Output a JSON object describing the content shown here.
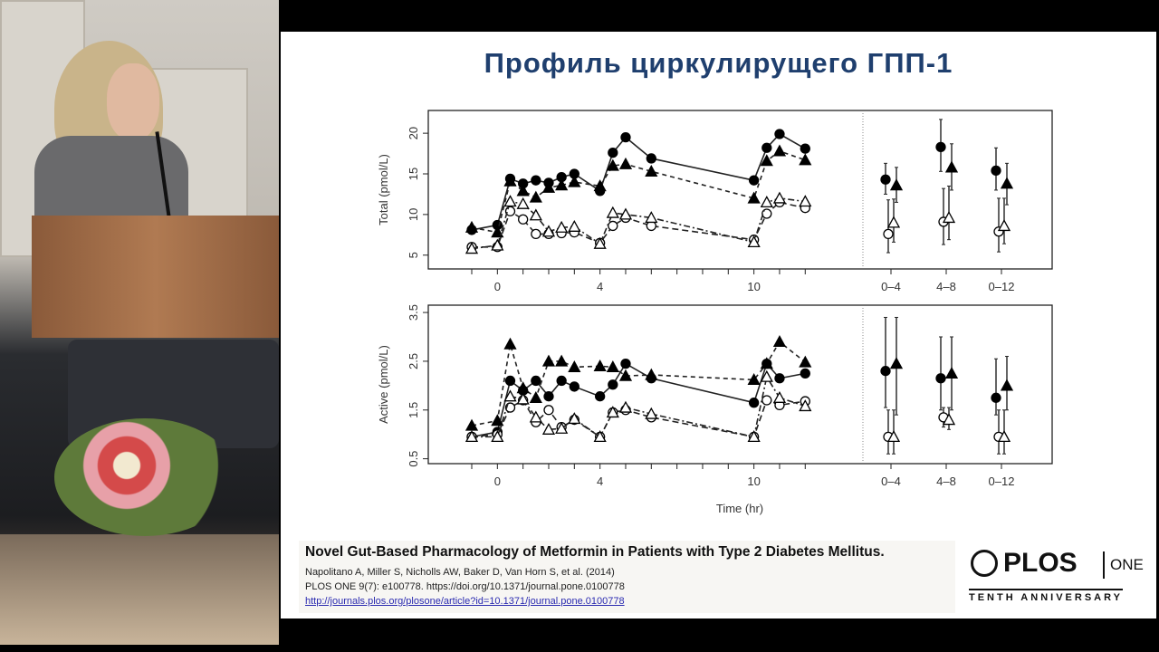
{
  "slide": {
    "title": "Профиль циркулирущего ГПП-1",
    "citation": {
      "headline": "Novel Gut-Based Pharmacology of Metformin in Patients with Type 2 Diabetes Mellitus.",
      "authors": "Napolitano A, Miller S, Nicholls AW, Baker D, Van Horn S, et al. (2014)",
      "journal": "PLOS ONE 9(7): e100778.  https://doi.org/10.1371/journal.pone.0100778",
      "link": "http://journals.plos.org/plosone/article?id=10.1371/journal.pone.0100778"
    },
    "logo": {
      "name": "PLOS",
      "sub": "ONE",
      "tagline": "TENTH ANNIVERSARY"
    }
  },
  "chart_data": [
    {
      "type": "line",
      "ylabel": "Total (pmol/L)",
      "xlabel": "",
      "ylim": [
        3.3,
        22.8
      ],
      "yticks": [
        5,
        10,
        15,
        20
      ],
      "x_tick_count": 14,
      "x_tick_labels": [
        {
          "index": 1,
          "label": "0"
        },
        {
          "index": 5,
          "label": "4"
        },
        {
          "index": 11,
          "label": "10"
        }
      ],
      "x_positions": [
        0,
        1,
        1.5,
        2,
        2.5,
        3,
        3.5,
        4,
        5,
        5.5,
        6,
        7,
        11,
        11.5,
        12,
        13
      ],
      "series": [
        {
          "name": "filled-circle",
          "marker": "circle-filled",
          "dash": "solid",
          "values": [
            8.1,
            8.7,
            14.4,
            13.8,
            14.2,
            13.9,
            14.6,
            15.0,
            12.9,
            17.6,
            19.5,
            16.9,
            14.2,
            18.2,
            19.9,
            18.1
          ]
        },
        {
          "name": "filled-triangle",
          "marker": "triangle-filled",
          "dash": "dashed",
          "values": [
            8.4,
            7.8,
            14.1,
            12.9,
            12.1,
            13.3,
            13.6,
            14.0,
            13.5,
            16.0,
            16.2,
            15.3,
            12.0,
            16.6,
            17.8,
            16.7
          ]
        },
        {
          "name": "open-circle",
          "marker": "circle-open",
          "dash": "longdash",
          "values": [
            6.0,
            6.0,
            10.4,
            9.4,
            7.6,
            7.6,
            7.7,
            7.8,
            6.5,
            8.6,
            9.6,
            8.6,
            6.9,
            10.1,
            11.5,
            10.8
          ]
        },
        {
          "name": "open-triangle",
          "marker": "triangle-open",
          "dash": "dotdash",
          "values": [
            5.8,
            6.2,
            11.6,
            11.3,
            9.9,
            7.9,
            8.4,
            8.5,
            6.4,
            10.2,
            10.0,
            9.6,
            6.6,
            11.5,
            12.0,
            11.6
          ]
        }
      ],
      "summary": {
        "groups": [
          "0–4",
          "4–8",
          "0–12"
        ],
        "series": [
          {
            "name": "filled-circle",
            "mean": [
              14.3,
              18.3,
              15.4
            ],
            "low": [
              12.5,
              15.3,
              13.0
            ],
            "high": [
              16.3,
              21.7,
              18.2
            ]
          },
          {
            "name": "filled-triangle",
            "mean": [
              13.6,
              15.8,
              13.8
            ],
            "low": [
              11.5,
              13.0,
              11.2
            ],
            "high": [
              15.8,
              18.7,
              16.3
            ]
          },
          {
            "name": "open-circle",
            "mean": [
              7.6,
              9.1,
              7.9
            ],
            "low": [
              5.3,
              6.3,
              5.4
            ],
            "high": [
              11.8,
              13.2,
              12.0
            ]
          },
          {
            "name": "open-triangle",
            "mean": [
              9.0,
              9.6,
              8.6
            ],
            "low": [
              6.6,
              6.9,
              6.4
            ],
            "high": [
              11.9,
              13.5,
              12.0
            ]
          }
        ]
      }
    },
    {
      "type": "line",
      "ylabel": "Active (pmol/L)",
      "xlabel": "Time (hr)",
      "ylim": [
        0.4,
        3.65
      ],
      "yticks": [
        0.5,
        1.5,
        2.5,
        3.5
      ],
      "x_tick_count": 14,
      "x_tick_labels": [
        {
          "index": 1,
          "label": "0"
        },
        {
          "index": 5,
          "label": "4"
        },
        {
          "index": 11,
          "label": "10"
        }
      ],
      "x_positions": [
        0,
        1,
        1.5,
        2,
        2.5,
        3,
        3.5,
        4,
        5,
        5.5,
        6,
        7,
        11,
        11.5,
        12,
        13
      ],
      "series": [
        {
          "name": "filled-circle",
          "marker": "circle-filled",
          "dash": "solid",
          "values": [
            0.95,
            1.05,
            2.1,
            1.9,
            2.1,
            1.78,
            2.1,
            1.98,
            1.78,
            2.02,
            2.45,
            2.15,
            1.65,
            2.45,
            2.15,
            2.25
          ]
        },
        {
          "name": "filled-triangle",
          "marker": "triangle-filled",
          "dash": "dashed",
          "values": [
            1.18,
            1.28,
            2.85,
            1.95,
            1.75,
            2.5,
            2.5,
            2.38,
            2.4,
            2.38,
            2.2,
            2.22,
            2.12,
            2.45,
            2.9,
            2.48
          ]
        },
        {
          "name": "open-circle",
          "marker": "circle-open",
          "dash": "longdash",
          "values": [
            0.95,
            1.0,
            1.55,
            1.7,
            1.25,
            1.5,
            1.15,
            1.3,
            0.95,
            1.45,
            1.5,
            1.35,
            0.95,
            1.7,
            1.6,
            1.68
          ]
        },
        {
          "name": "open-triangle",
          "marker": "triangle-open",
          "dash": "dotdash",
          "values": [
            0.95,
            0.95,
            1.78,
            1.72,
            1.35,
            1.1,
            1.12,
            1.32,
            0.95,
            1.45,
            1.55,
            1.42,
            0.95,
            2.18,
            1.75,
            1.58
          ]
        }
      ],
      "summary": {
        "groups": [
          "0–4",
          "4–8",
          "0–12"
        ],
        "series": [
          {
            "name": "filled-circle",
            "mean": [
              2.3,
              2.15,
              1.75
            ],
            "low": [
              1.55,
              1.5,
              1.4
            ],
            "high": [
              3.4,
              3.0,
              2.55
            ]
          },
          {
            "name": "filled-triangle",
            "mean": [
              2.45,
              2.25,
              2.0
            ],
            "low": [
              1.4,
              1.5,
              1.5
            ],
            "high": [
              3.4,
              3.0,
              2.6
            ]
          },
          {
            "name": "open-circle",
            "mean": [
              0.95,
              1.35,
              0.95
            ],
            "low": [
              0.6,
              1.15,
              0.6
            ],
            "high": [
              1.5,
              1.55,
              1.5
            ]
          },
          {
            "name": "open-triangle",
            "mean": [
              0.95,
              1.3,
              0.95
            ],
            "low": [
              0.6,
              1.1,
              0.6
            ],
            "high": [
              1.5,
              1.55,
              1.5
            ]
          }
        ]
      }
    }
  ]
}
